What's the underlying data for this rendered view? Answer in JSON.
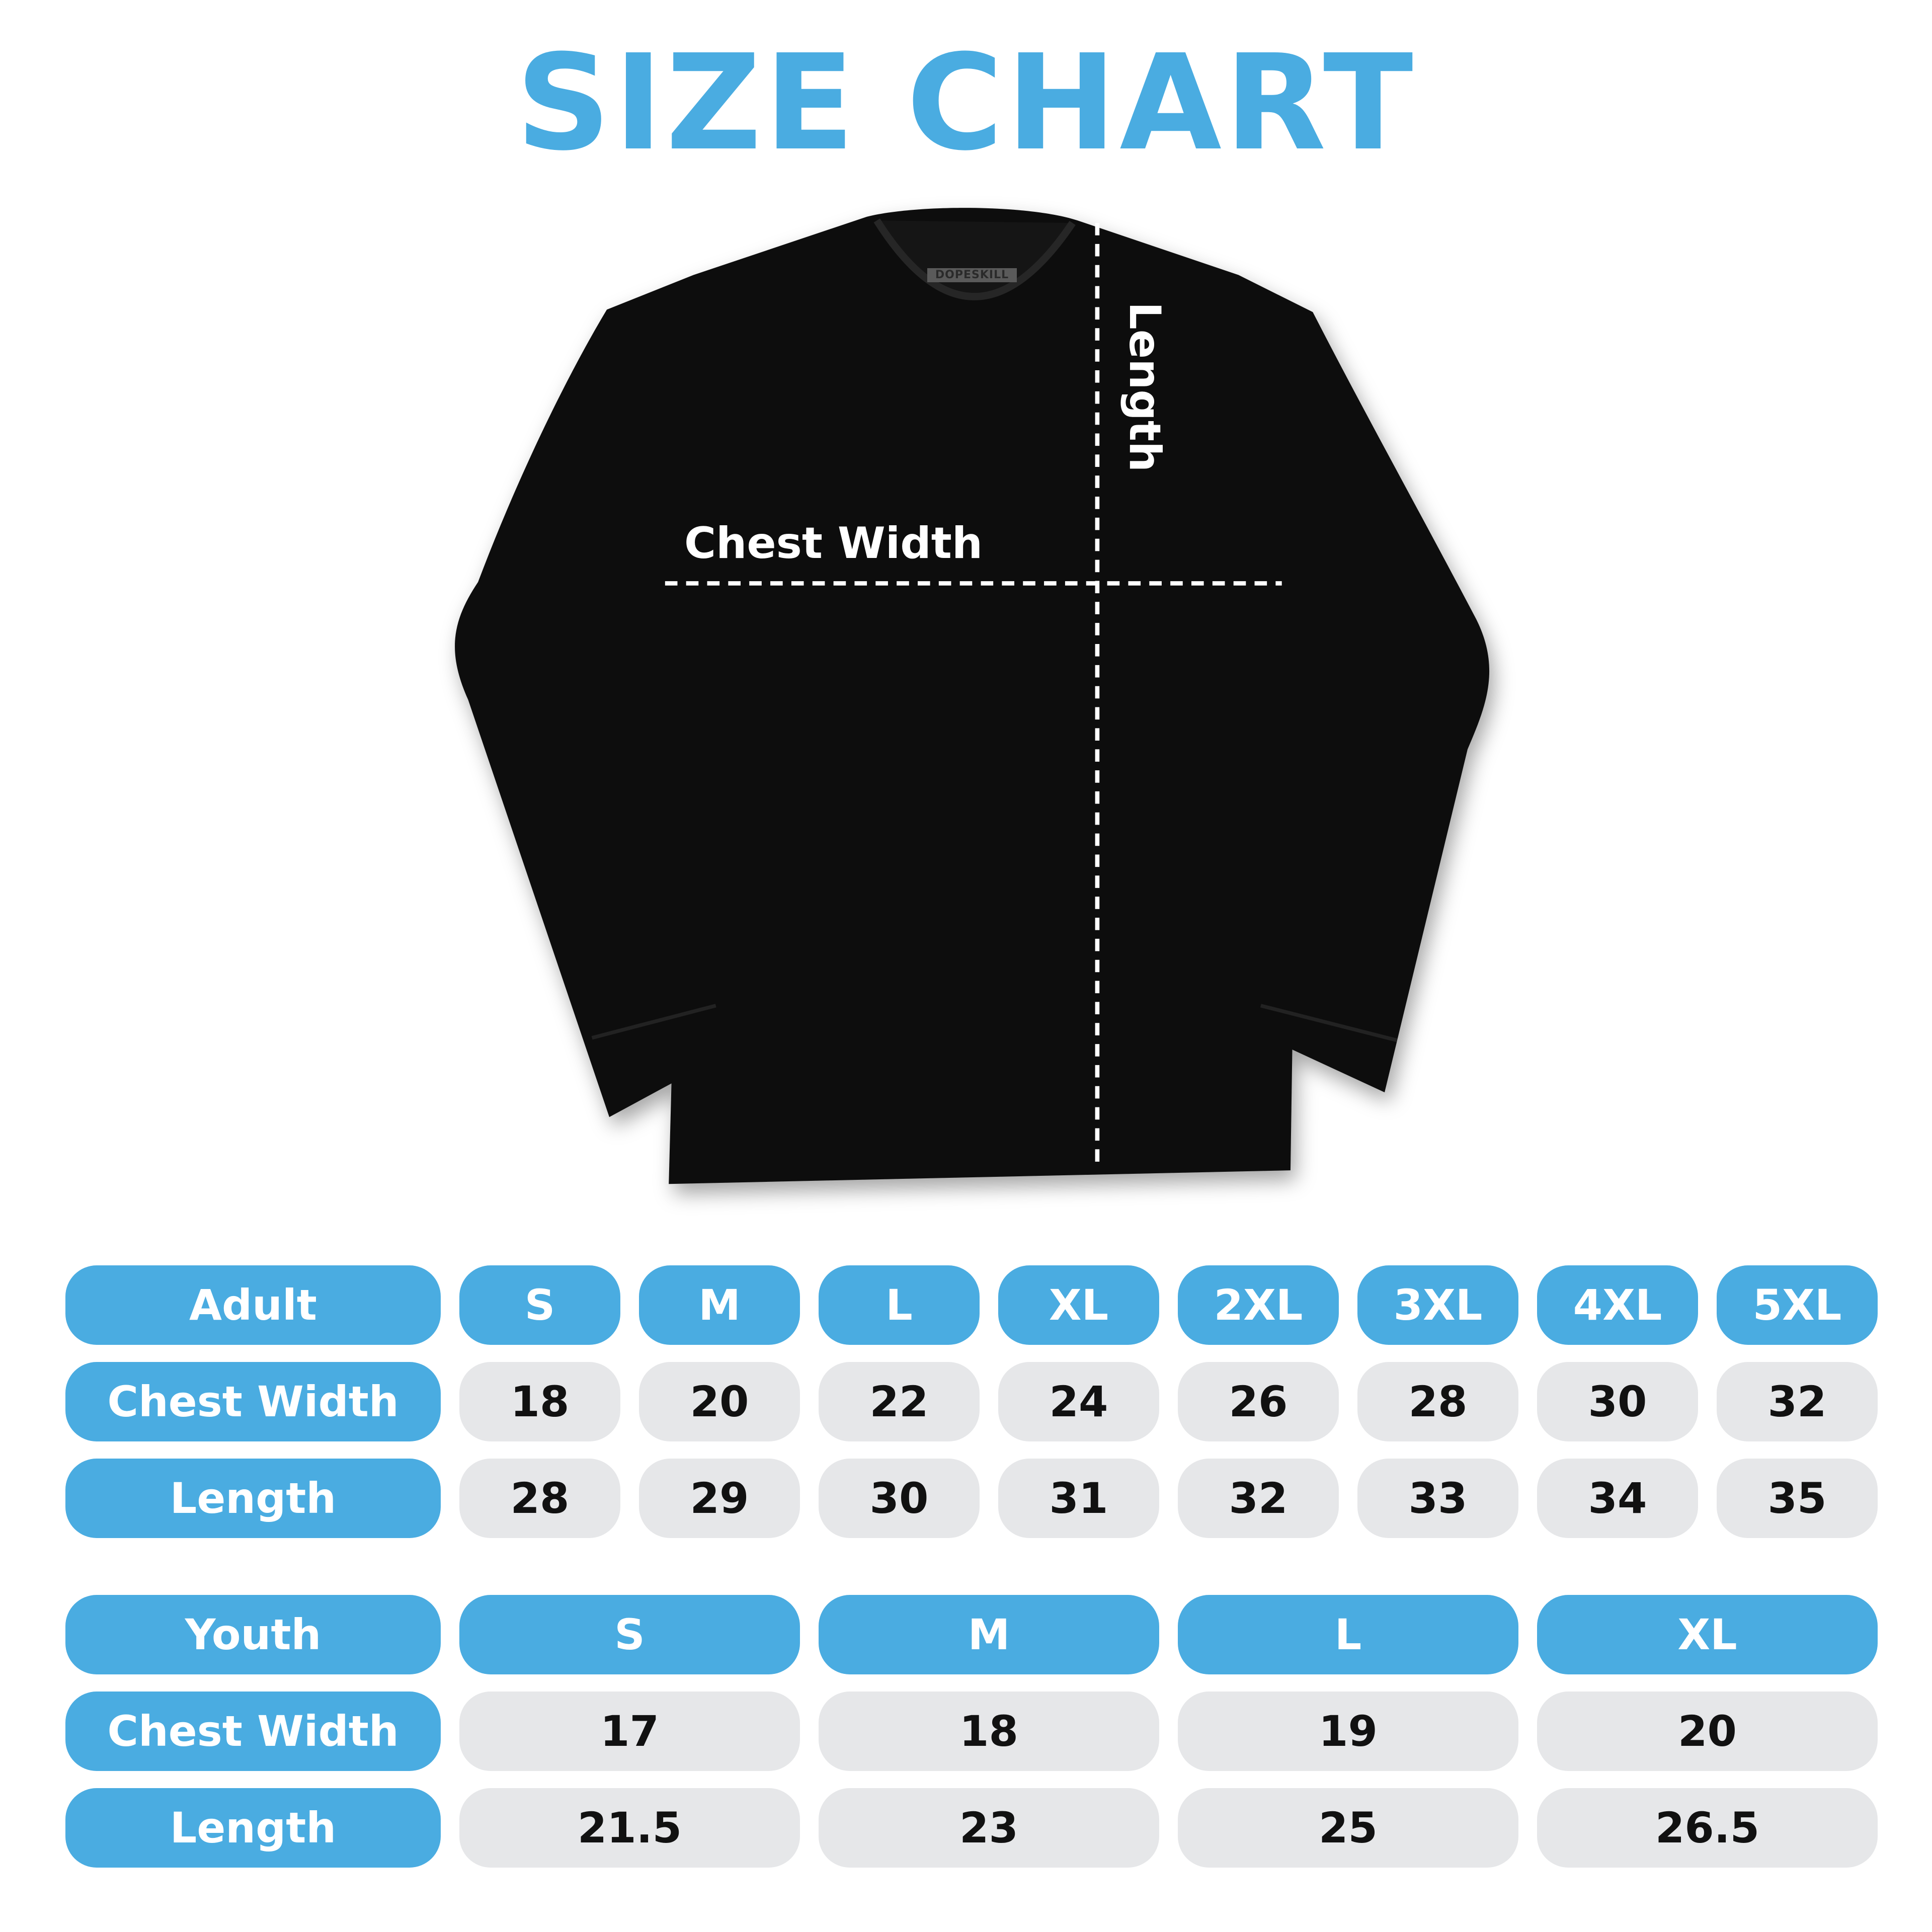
{
  "title": "SIZE CHART",
  "shirt": {
    "logo_text": "DOPESKILL",
    "chest_annotation": "Chest Width",
    "length_annotation": "Length",
    "color": "#0d0d0d"
  },
  "colors": {
    "accent": "#4aace1",
    "cell_bg": "#e6e7e9",
    "cell_text": "#111111",
    "header_text": "#ffffff"
  },
  "adult": {
    "header_label": "Adult",
    "sizes": [
      "S",
      "M",
      "L",
      "XL",
      "2XL",
      "3XL",
      "4XL",
      "5XL"
    ],
    "rows": [
      {
        "label": "Chest Width",
        "values": [
          "18",
          "20",
          "22",
          "24",
          "26",
          "28",
          "30",
          "32"
        ]
      },
      {
        "label": "Length",
        "values": [
          "28",
          "29",
          "30",
          "31",
          "32",
          "33",
          "34",
          "35"
        ]
      }
    ]
  },
  "youth": {
    "header_label": "Youth",
    "sizes": [
      "S",
      "M",
      "L",
      "XL"
    ],
    "rows": [
      {
        "label": "Chest Width",
        "values": [
          "17",
          "18",
          "19",
          "20"
        ]
      },
      {
        "label": "Length",
        "values": [
          "21.5",
          "23",
          "25",
          "26.5"
        ]
      }
    ]
  }
}
